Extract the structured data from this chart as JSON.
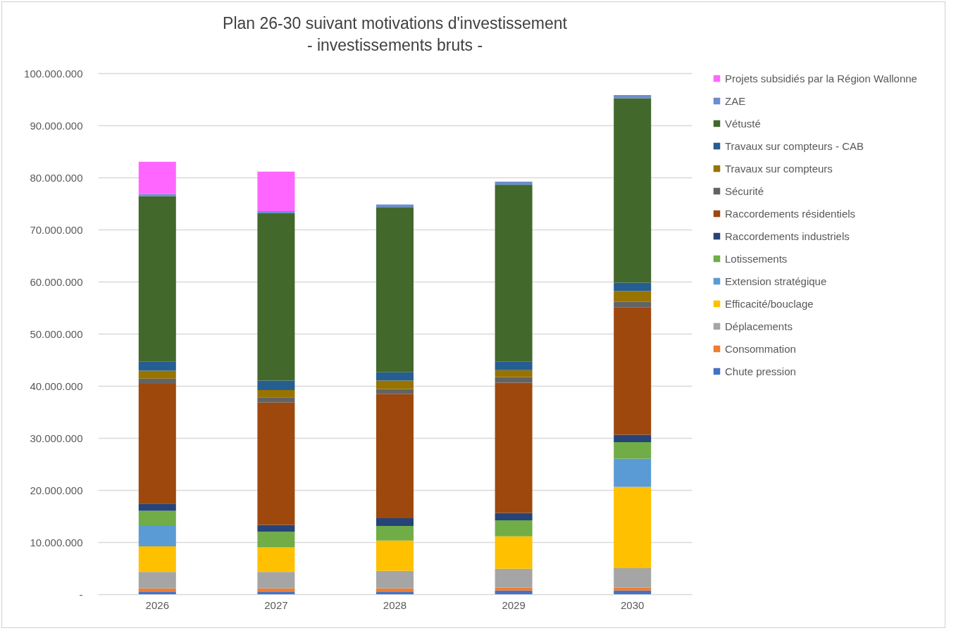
{
  "chart_data": {
    "type": "bar",
    "title": "Plan 26-30 suivant motivations d'investissement",
    "subtitle": "- investissements bruts -",
    "stacked": true,
    "grid": "y",
    "legend": "right",
    "categories": [
      "2026",
      "2027",
      "2028",
      "2029",
      "2030"
    ],
    "ylim": [
      0,
      100000000
    ],
    "yticks": [
      {
        "value": 0,
        "label": "-"
      },
      {
        "value": 10000000,
        "label": "10.000.000"
      },
      {
        "value": 20000000,
        "label": "20.000.000"
      },
      {
        "value": 30000000,
        "label": "30.000.000"
      },
      {
        "value": 40000000,
        "label": "40.000.000"
      },
      {
        "value": 50000000,
        "label": "50.000.000"
      },
      {
        "value": 60000000,
        "label": "60.000.000"
      },
      {
        "value": 70000000,
        "label": "70.000.000"
      },
      {
        "value": 80000000,
        "label": "80.000.000"
      },
      {
        "value": 90000000,
        "label": "90.000.000"
      },
      {
        "value": 100000000,
        "label": "100.000.000"
      }
    ],
    "series": [
      {
        "name": "Chute pression",
        "color": "#4472c4",
        "values": [
          500000,
          500000,
          500000,
          700000,
          700000
        ]
      },
      {
        "name": "Consommation",
        "color": "#ed7d31",
        "values": [
          600000,
          600000,
          600000,
          600000,
          600000
        ]
      },
      {
        "name": "Déplacements",
        "color": "#a5a5a5",
        "values": [
          3200000,
          3200000,
          3400000,
          3600000,
          3700000
        ]
      },
      {
        "name": "Efficacité/bouclage",
        "color": "#ffc000",
        "values": [
          4900000,
          4700000,
          5800000,
          6200000,
          15600000
        ]
      },
      {
        "name": "Extension stratégique",
        "color": "#5b9bd5",
        "values": [
          3900000,
          null,
          null,
          null,
          5400000
        ]
      },
      {
        "name": "Lotissements",
        "color": "#70ad47",
        "values": [
          2900000,
          3000000,
          2800000,
          3100000,
          3200000
        ]
      },
      {
        "name": "Raccordements industriels",
        "color": "#264478",
        "values": [
          1400000,
          1300000,
          1500000,
          1400000,
          1400000
        ]
      },
      {
        "name": "Raccordements résidentiels",
        "color": "#9e480e",
        "values": [
          23000000,
          23500000,
          23800000,
          25000000,
          24500000
        ]
      },
      {
        "name": "Sécurité",
        "color": "#636363",
        "values": [
          1000000,
          1000000,
          1000000,
          1100000,
          1000000
        ]
      },
      {
        "name": "Travaux sur compteurs",
        "color": "#997300",
        "values": [
          1500000,
          1400000,
          1600000,
          1300000,
          2100000
        ]
      },
      {
        "name": "Travaux sur compteurs - CAB",
        "color": "#255e91",
        "values": [
          1800000,
          1800000,
          1600000,
          1700000,
          1600000
        ]
      },
      {
        "name": "Vétusté",
        "color": "#43682b",
        "values": [
          31700000,
          32100000,
          31700000,
          33900000,
          35400000
        ]
      },
      {
        "name": "ZAE",
        "color": "#698ed0",
        "values": [
          400000,
          400000,
          500000,
          600000,
          600000
        ]
      },
      {
        "name": "Projets subsidiés par la Région Wallonne",
        "color": "#ff66ff",
        "values": [
          6200000,
          7600000,
          null,
          null,
          null
        ]
      }
    ]
  }
}
